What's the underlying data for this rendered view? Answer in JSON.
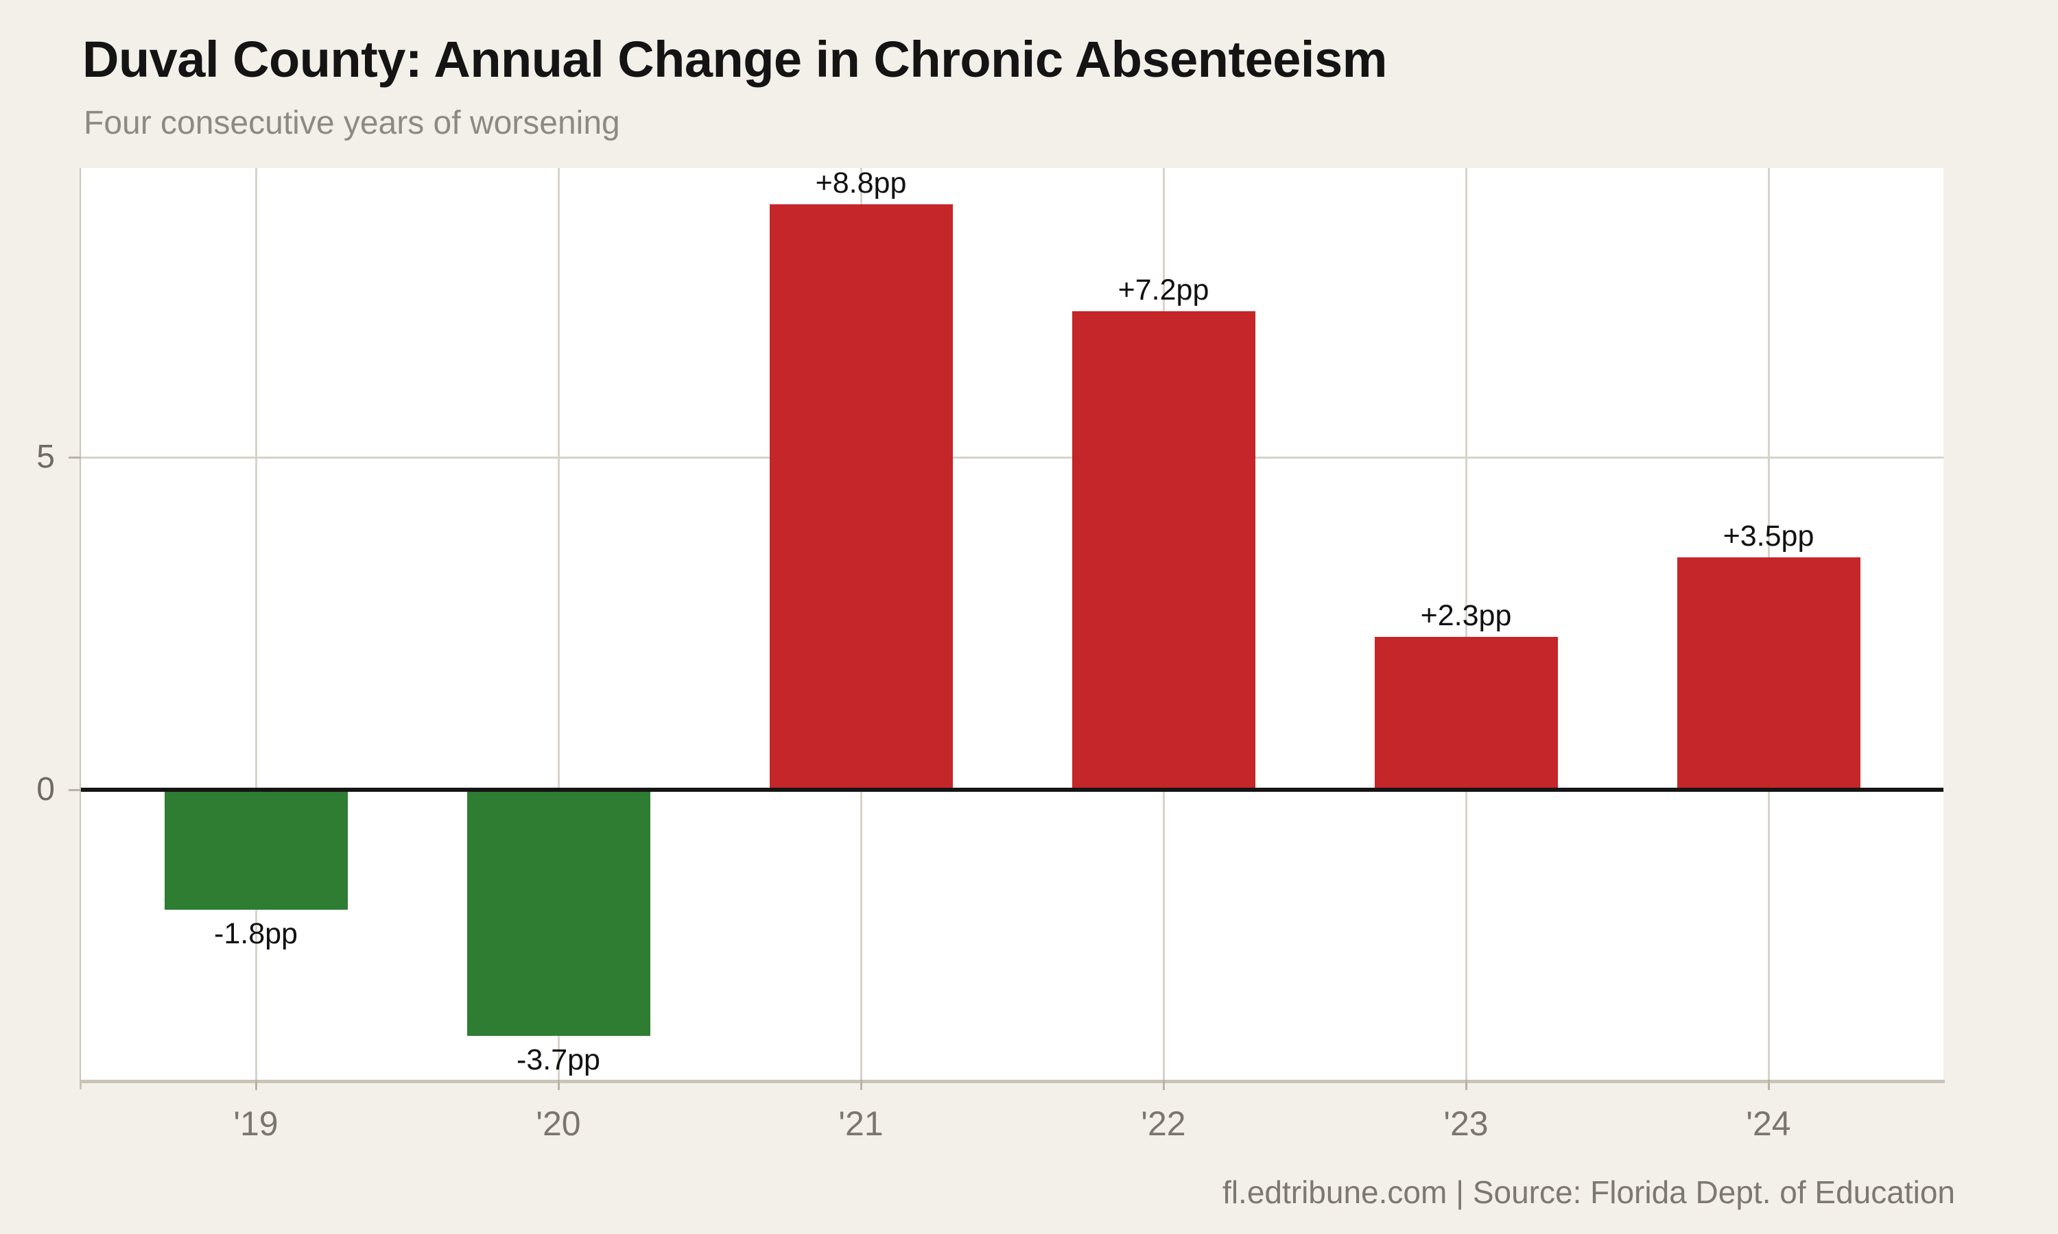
{
  "page": {
    "title": "Duval County: Annual Change in Chronic Absenteeism",
    "subtitle": "Four consecutive years of worsening",
    "footer": "fl.edtribune.com | Source: Florida Dept. of Education"
  },
  "colors": {
    "background": "#f3efe9",
    "plot_background": "#ffffff",
    "bar_increase": "#c52629",
    "bar_decrease": "#2e7d32",
    "gridline": "#d8d3c9",
    "axis_line": "#c9c3b8",
    "zero_line": "#151515",
    "tick_label": "#7b766d",
    "value_label": "#111111"
  },
  "chart_data": {
    "type": "bar",
    "title": "Duval County: Annual Change in Chronic Absenteeism",
    "subtitle": "Four consecutive years of worsening",
    "categories": [
      "'19",
      "'20",
      "'21",
      "'22",
      "'23",
      "'24"
    ],
    "values": [
      -1.8,
      -3.7,
      8.8,
      7.2,
      2.3,
      3.5
    ],
    "bar_labels": [
      "-1.8pp",
      "-3.7pp",
      "+8.8pp",
      "+7.2pp",
      "+2.3pp",
      "+3.5pp"
    ],
    "bar_color_rule": "negative values green (#2e7d32), positive values red (#c52629)",
    "xlabel": "",
    "ylabel": "",
    "yticks": [
      0,
      5
    ],
    "ylim": [
      -4.36,
      9.35
    ],
    "grid": "vertical gridline per category; horizontal gridline at 5; bold black zero line",
    "legend": "none",
    "source_note": "fl.edtribune.com | Source: Florida Dept. of Education"
  }
}
